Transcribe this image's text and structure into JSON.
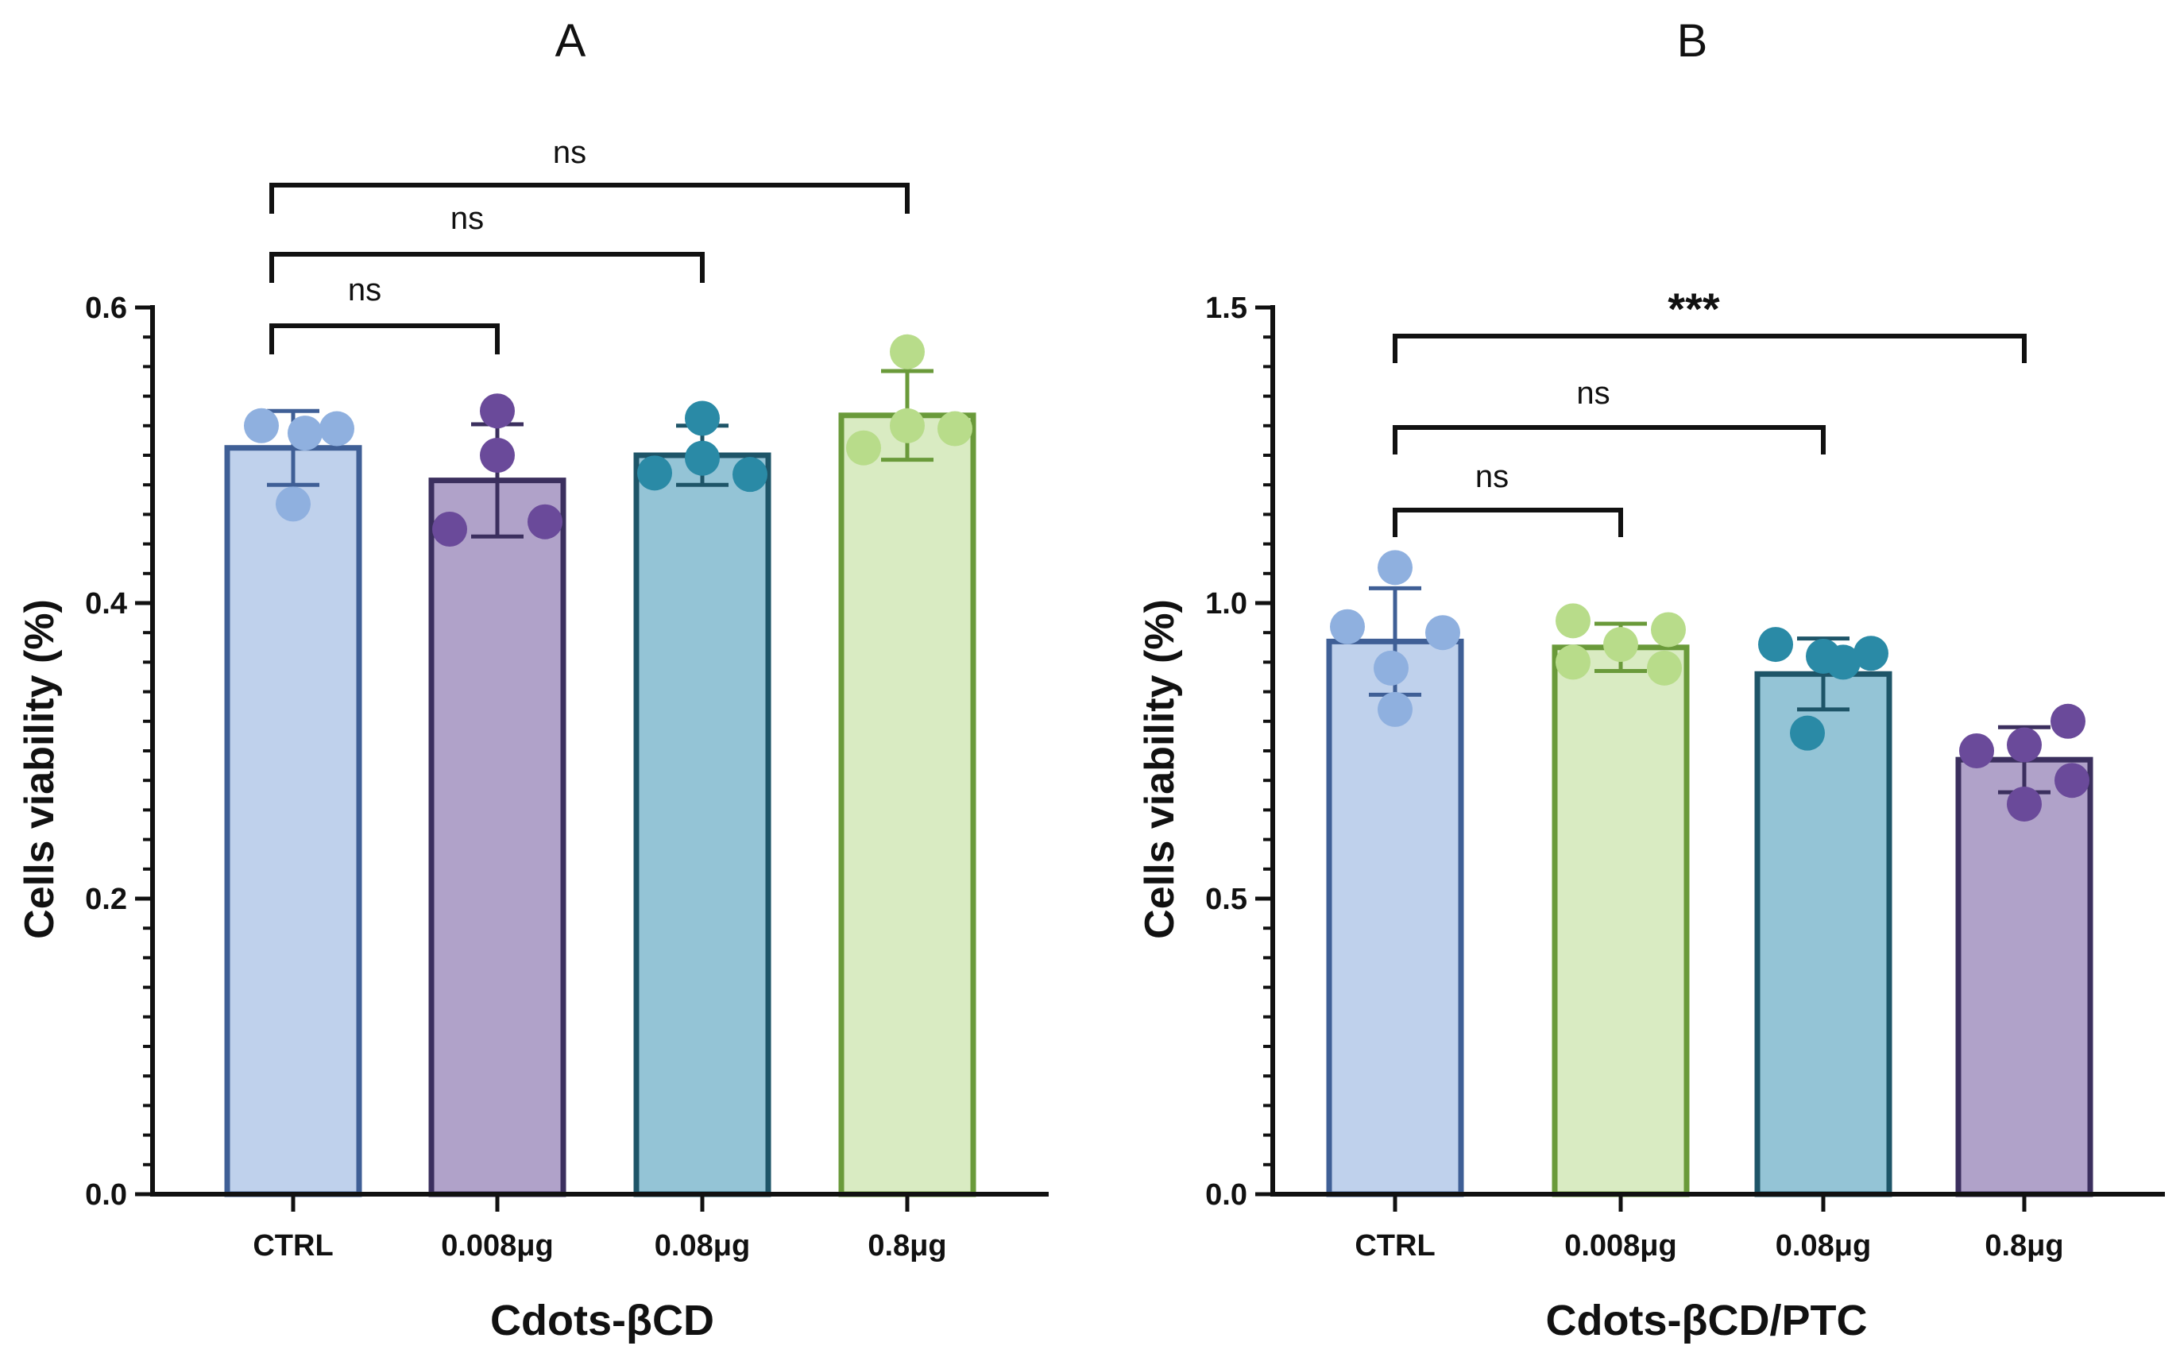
{
  "chart_data": [
    {
      "type": "bar",
      "panel_label": "A",
      "title": "",
      "xlabel": "Cdots-βCD",
      "ylabel": "Cells viability (%)",
      "ylim": [
        0,
        0.6
      ],
      "yticks": [
        0.0,
        0.2,
        0.4,
        0.6
      ],
      "ytick_labels": [
        "0.0",
        "0.2",
        "0.4",
        "0.6"
      ],
      "categories": [
        "CTRL",
        "0.008μg",
        "0.08μg",
        "0.8μg"
      ],
      "values": [
        0.505,
        0.483,
        0.5,
        0.527
      ],
      "error_sd": [
        0.025,
        0.038,
        0.02,
        0.03
      ],
      "points": [
        [
          0.52,
          0.515,
          0.518,
          0.467
        ],
        [
          0.53,
          0.5,
          0.455,
          0.45
        ],
        [
          0.525,
          0.498,
          0.488,
          0.487
        ],
        [
          0.57,
          0.52,
          0.518,
          0.505
        ]
      ],
      "bar_fill": [
        "#bfd1ec",
        "#b0a2c9",
        "#94c4d6",
        "#d9ebc2"
      ],
      "bar_edge": [
        "#3f5f96",
        "#3b2f5e",
        "#1e5568",
        "#6a9a3a"
      ],
      "point_color": [
        "#8fb0df",
        "#6a4a9a",
        "#2a8aa6",
        "#b8dc8a"
      ],
      "significance": [
        {
          "from": 0,
          "to": 1,
          "label": "ns"
        },
        {
          "from": 0,
          "to": 2,
          "label": "ns"
        },
        {
          "from": 0,
          "to": 3,
          "label": "ns"
        }
      ]
    },
    {
      "type": "bar",
      "panel_label": "B",
      "title": "",
      "xlabel": "Cdots-βCD/PTC",
      "ylabel": "Cells viability (%)",
      "ylim": [
        0,
        1.5
      ],
      "yticks": [
        0.0,
        0.5,
        1.0,
        1.5
      ],
      "ytick_labels": [
        "0.0",
        "0.5",
        "1.0",
        "1.5"
      ],
      "categories": [
        "CTRL",
        "0.008μg",
        "0.08μg",
        "0.8μg"
      ],
      "values": [
        0.935,
        0.925,
        0.88,
        0.735
      ],
      "error_sd": [
        0.09,
        0.04,
        0.06,
        0.055
      ],
      "points": [
        [
          1.06,
          0.96,
          0.95,
          0.89,
          0.82
        ],
        [
          0.97,
          0.955,
          0.93,
          0.9,
          0.89
        ],
        [
          0.93,
          0.91,
          0.915,
          0.9,
          0.78
        ],
        [
          0.8,
          0.76,
          0.75,
          0.7,
          0.66
        ]
      ],
      "bar_fill": [
        "#bfd1ec",
        "#d9ebc2",
        "#94c4d6",
        "#b0a2c9"
      ],
      "bar_edge": [
        "#3f5f96",
        "#6a9a3a",
        "#1e5568",
        "#3b2f5e"
      ],
      "point_color": [
        "#8fb0df",
        "#b8dc8a",
        "#2a8aa6",
        "#6a4a9a"
      ],
      "significance": [
        {
          "from": 0,
          "to": 1,
          "label": "ns"
        },
        {
          "from": 0,
          "to": 2,
          "label": "ns"
        },
        {
          "from": 0,
          "to": 3,
          "label": "***"
        }
      ]
    }
  ]
}
